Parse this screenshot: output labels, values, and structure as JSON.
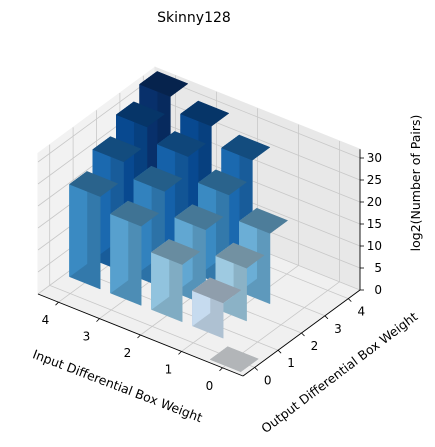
{
  "chart_data": {
    "type": "bar3d",
    "title": "Skinny128",
    "xlabel": "Input Differential Box Weight",
    "ylabel": "Output Differential Box Weight",
    "zlabel": "log2(Number of Pairs)",
    "x_ticks": [
      "0",
      "1",
      "2",
      "3",
      "4"
    ],
    "y_ticks": [
      "0",
      "1",
      "2",
      "3",
      "4"
    ],
    "z_ticks": [
      "0",
      "5",
      "10",
      "15",
      "20",
      "25",
      "30"
    ],
    "zlim": [
      0,
      32
    ],
    "grid": true,
    "colormap": "Blues",
    "bars": [
      {
        "x": 0,
        "y": 0,
        "z": 0
      },
      {
        "x": 1,
        "y": 1,
        "z": 8
      },
      {
        "x": 1,
        "y": 2,
        "z": 12
      },
      {
        "x": 1,
        "y": 3,
        "z": 16
      },
      {
        "x": 2,
        "y": 1,
        "z": 13
      },
      {
        "x": 2,
        "y": 2,
        "z": 17
      },
      {
        "x": 2,
        "y": 3,
        "z": 21
      },
      {
        "x": 2,
        "y": 4,
        "z": 25
      },
      {
        "x": 3,
        "y": 1,
        "z": 18
      },
      {
        "x": 3,
        "y": 2,
        "z": 22
      },
      {
        "x": 3,
        "y": 3,
        "z": 26
      },
      {
        "x": 3,
        "y": 4,
        "z": 29
      },
      {
        "x": 4,
        "y": 1,
        "z": 21
      },
      {
        "x": 4,
        "y": 2,
        "z": 25
      },
      {
        "x": 4,
        "y": 3,
        "z": 29
      },
      {
        "x": 4,
        "y": 4,
        "z": 32
      }
    ]
  }
}
